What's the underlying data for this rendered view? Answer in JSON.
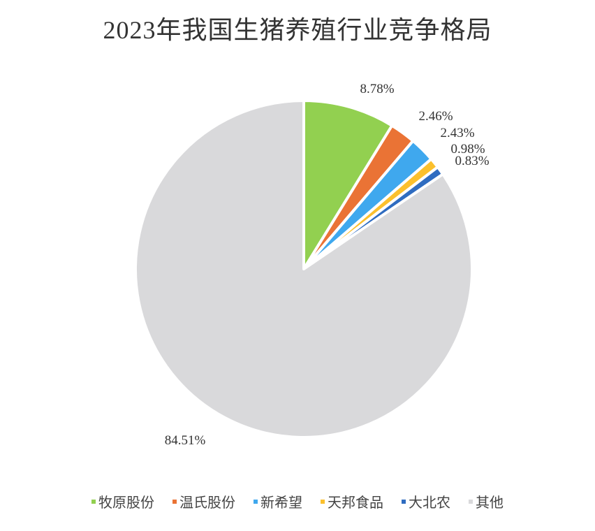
{
  "chart_data": {
    "type": "pie",
    "title": "2023年我国生猪养殖行业竞争格局",
    "start": "12 o'clock, clockwise",
    "legend_position": "bottom",
    "slices": [
      {
        "name": "牧原股份",
        "value": 8.78,
        "label": "8.78%",
        "color": "#92d050"
      },
      {
        "name": "温氏股份",
        "value": 2.46,
        "label": "2.46%",
        "color": "#ea7335"
      },
      {
        "name": "新希望",
        "value": 2.43,
        "label": "2.43%",
        "color": "#3fa8ee"
      },
      {
        "name": "天邦食品",
        "value": 0.98,
        "label": "0.98%",
        "color": "#fbc02d"
      },
      {
        "name": "大北农",
        "value": 0.83,
        "label": "0.83%",
        "color": "#2f6cc0"
      },
      {
        "name": "其他",
        "value": 84.51,
        "label": "84.51%",
        "color": "#d9d9db"
      }
    ]
  }
}
